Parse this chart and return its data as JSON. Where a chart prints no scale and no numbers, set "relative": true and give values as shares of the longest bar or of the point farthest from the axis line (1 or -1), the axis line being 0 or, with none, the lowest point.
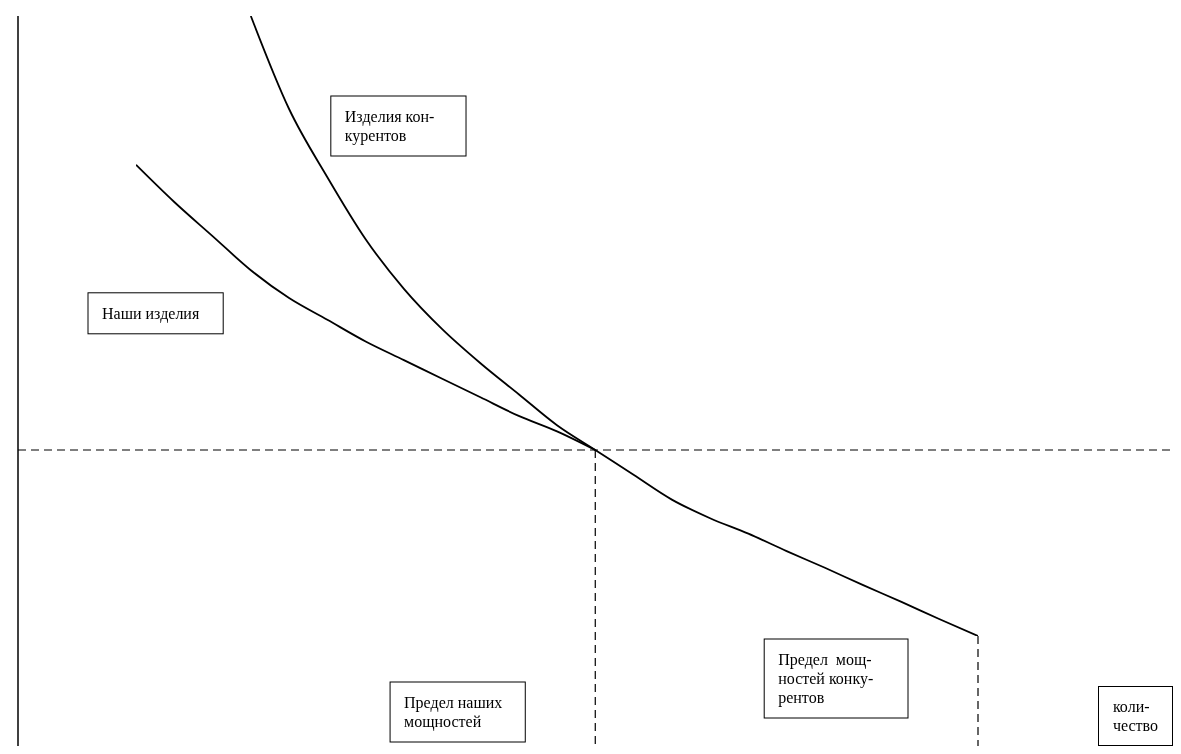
{
  "chart_data": {
    "type": "line",
    "relative": true,
    "annotations": [
      "Предел наших\nмощностей",
      "Предел  мощ-\nностей конку-\nрентов",
      "коли-\nчество"
    ],
    "categories": [
      null,
      null,
      null,
      null,
      null,
      null,
      null,
      null,
      null,
      null,
      null,
      null,
      null,
      null,
      null,
      null,
      null,
      null,
      null,
      null,
      null,
      null,
      null
    ],
    "series": [
      {
        "name": "Наши изделия",
        "color": "#000000",
        "values": [
          0.76,
          0.7,
          0.645,
          0.59,
          0.545,
          0.51,
          0.475,
          0.445,
          0.415,
          0.385,
          0.355,
          0.33,
          0.3,
          null,
          null,
          null,
          null,
          null,
          null,
          null,
          null,
          null,
          null
        ]
      },
      {
        "name": "Изделия кон-\nкурентов",
        "color": "#000000",
        "values": [
          null,
          null,
          null,
          1,
          0.85,
          0.74,
          0.64,
          0.56,
          0.495,
          0.44,
          0.39,
          0.34,
          0.3,
          0.26,
          0.22,
          0.19,
          0.165,
          0.137,
          0.11,
          0.082,
          0.055,
          0.027,
          0
        ]
      }
    ],
    "ref_lines": [
      {
        "axis": "y",
        "value": 0.3,
        "color": "#000000",
        "line_style": "dashed"
      }
    ],
    "marker": "none",
    "line_style": "solid",
    "grid": false,
    "legend": false
  }
}
